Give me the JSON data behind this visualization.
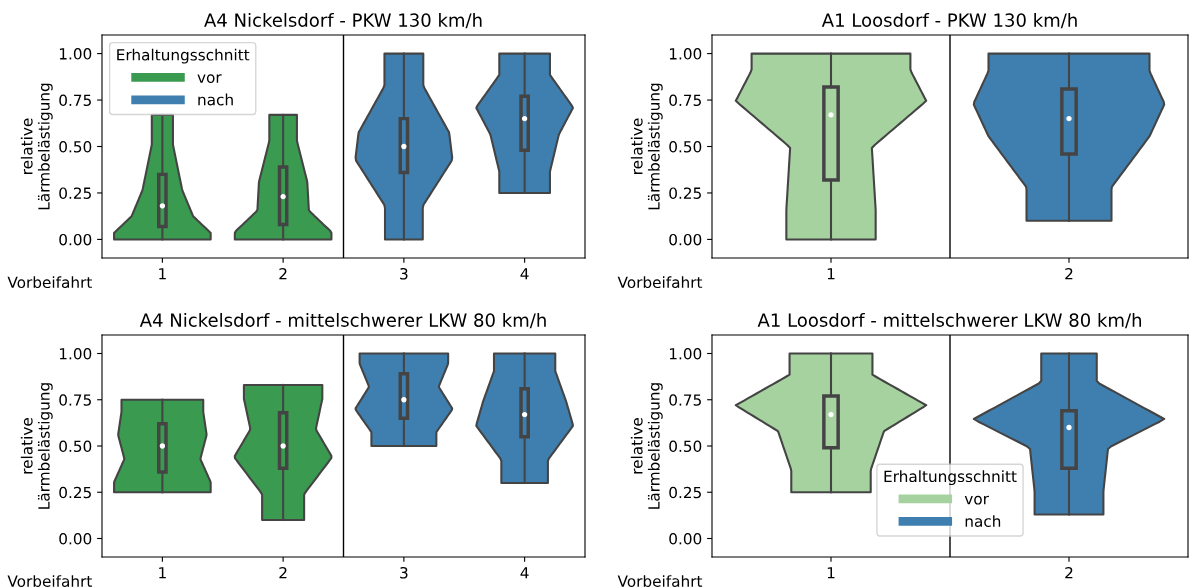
{
  "chart_data": [
    {
      "type": "box",
      "title": "A4 Nickelsdorf - PKW 130 km/h",
      "xlabel": "Vorbeifahrt",
      "ylabel": "relative\nLärmbelästigung",
      "categories": [
        "1",
        "2",
        "3",
        "4"
      ],
      "series": [
        {
          "name": "vor",
          "color": "#3a9a50",
          "boxes": [
            {
              "low": 0,
              "q1": 0.07,
              "median": 0.18,
              "q3": 0.35,
              "high": 0.67
            },
            {
              "low": 0,
              "q1": 0.08,
              "median": 0.23,
              "q3": 0.39,
              "high": 0.67
            },
            null,
            null
          ]
        },
        {
          "name": "nach",
          "color": "#3f7fb0",
          "boxes": [
            null,
            null,
            {
              "low": 0,
              "q1": 0.36,
              "median": 0.5,
              "q3": 0.65,
              "high": 1.0
            },
            {
              "low": 0.25,
              "q1": 0.48,
              "median": 0.65,
              "q3": 0.77,
              "high": 1.0
            }
          ]
        }
      ],
      "ylim": [
        -0.1,
        1.1
      ],
      "yticks": [
        {
          "value": 0,
          "label": "0.00"
        },
        {
          "value": 0.25,
          "label": "0.25"
        },
        {
          "value": 0.5,
          "label": "0.50"
        },
        {
          "value": 0.75,
          "label": "0.75"
        },
        {
          "value": 1,
          "label": "1.00"
        }
      ],
      "legend": "top left",
      "legend_title": "Erhaltungsschnitt",
      "grid": false
    },
    {
      "type": "box",
      "title": "A1 Loosdorf - PKW 130 km/h",
      "xlabel": "Vorbeifahrt",
      "ylabel": "relative\nLärmbelästigung",
      "categories": [
        "1",
        "2"
      ],
      "series": [
        {
          "color": "#a6d2a0",
          "boxes": [
            {
              "low": 0,
              "q1": 0.32,
              "median": 0.67,
              "q3": 0.82,
              "high": 1.0
            },
            null
          ]
        },
        {
          "color": "#3f7fb0",
          "boxes": [
            null,
            {
              "low": 0.1,
              "q1": 0.46,
              "median": 0.65,
              "q3": 0.81,
              "high": 1.0
            }
          ]
        }
      ],
      "ylim": [
        -0.1,
        1.1
      ],
      "yticks": [
        {
          "value": 0,
          "label": "0.00"
        },
        {
          "value": 0.25,
          "label": "0.25"
        },
        {
          "value": 0.5,
          "label": "0.50"
        },
        {
          "value": 0.75,
          "label": "0.75"
        },
        {
          "value": 1,
          "label": "1.00"
        }
      ],
      "legend": false,
      "grid": false
    },
    {
      "type": "box",
      "title": "A4 Nickelsdorf - mittelschwerer LKW 80 km/h",
      "xlabel": "Vorbeifahrt",
      "ylabel": "relative\nLärmbelästigung",
      "categories": [
        "1",
        "2",
        "3",
        "4"
      ],
      "series": [
        {
          "color": "#3a9a50",
          "boxes": [
            {
              "low": 0.25,
              "q1": 0.36,
              "median": 0.5,
              "q3": 0.62,
              "high": 0.75
            },
            {
              "low": 0.1,
              "q1": 0.38,
              "median": 0.5,
              "q3": 0.68,
              "high": 0.83
            },
            null,
            null
          ]
        },
        {
          "color": "#3f7fb0",
          "boxes": [
            null,
            null,
            {
              "low": 0.5,
              "q1": 0.65,
              "median": 0.75,
              "q3": 0.89,
              "high": 1.0
            },
            {
              "low": 0.3,
              "q1": 0.55,
              "median": 0.67,
              "q3": 0.81,
              "high": 1.0
            }
          ]
        }
      ],
      "ylim": [
        -0.1,
        1.1
      ],
      "yticks": [
        {
          "value": 0,
          "label": "0.00"
        },
        {
          "value": 0.25,
          "label": "0.25"
        },
        {
          "value": 0.5,
          "label": "0.50"
        },
        {
          "value": 0.75,
          "label": "0.75"
        },
        {
          "value": 1,
          "label": "1.00"
        }
      ],
      "legend": false,
      "grid": false
    },
    {
      "type": "box",
      "title": "A1 Loosdorf - mittelschwerer LKW 80 km/h",
      "xlabel": "Vorbeifahrt",
      "ylabel": "relative\nLärmbelästigung",
      "categories": [
        "1",
        "2"
      ],
      "series": [
        {
          "name": "vor",
          "color": "#a6d2a0",
          "boxes": [
            {
              "low": 0.25,
              "q1": 0.49,
              "median": 0.67,
              "q3": 0.77,
              "high": 1.0
            },
            null
          ]
        },
        {
          "name": "nach",
          "color": "#3f7fb0",
          "boxes": [
            null,
            {
              "low": 0.13,
              "q1": 0.38,
              "median": 0.6,
              "q3": 0.69,
              "high": 1.0
            }
          ]
        }
      ],
      "ylim": [
        -0.1,
        1.1
      ],
      "yticks": [
        {
          "value": 0,
          "label": "0.00"
        },
        {
          "value": 0.25,
          "label": "0.25"
        },
        {
          "value": 0.5,
          "label": "0.50"
        },
        {
          "value": 0.75,
          "label": "0.75"
        },
        {
          "value": 1,
          "label": "1.00"
        }
      ],
      "legend": "bottom",
      "legend_title": "Erhaltungsschnitt",
      "grid": false
    }
  ]
}
